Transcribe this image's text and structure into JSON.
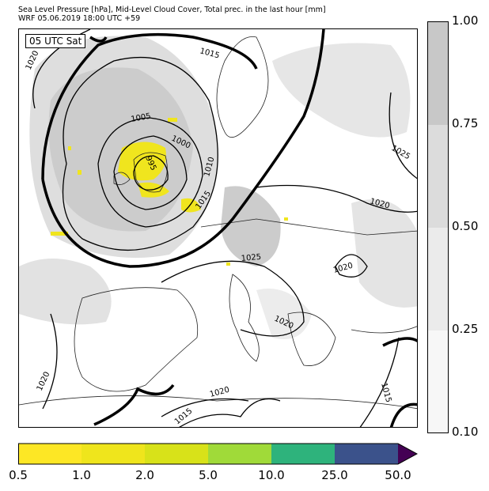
{
  "header": {
    "line1": "Sea Level Pressure [hPa], Mid-Level Cloud Cover, Total prec. in the last hour [mm]",
    "line2": "WRF 05.06.2019 18:00 UTC +59"
  },
  "map": {
    "valid_time_label": "05 UTC Sat",
    "isobar_labels": [
      "1020",
      "1015",
      "1005",
      "1000",
      "995",
      "1010",
      "1015",
      "1025",
      "1020",
      "1025",
      "1020",
      "1020",
      "1020",
      "1020",
      "1015",
      "1015"
    ]
  },
  "cloud_legend": {
    "ticks": [
      "1.00",
      "0.75",
      "0.50",
      "0.25",
      "0.10"
    ],
    "colors": [
      "#c8c8c8",
      "#dcdcdc",
      "#ebebeb",
      "#f7f7f7"
    ]
  },
  "precip_legend": {
    "ticks": [
      "0.5",
      "1.0",
      "2.0",
      "5.0",
      "10.0",
      "25.0",
      "50.0"
    ],
    "colors": [
      "#fde725",
      "#efe51c",
      "#d8e219",
      "#a0da39",
      "#2eb37c",
      "#3b528b",
      "#440154"
    ]
  }
}
